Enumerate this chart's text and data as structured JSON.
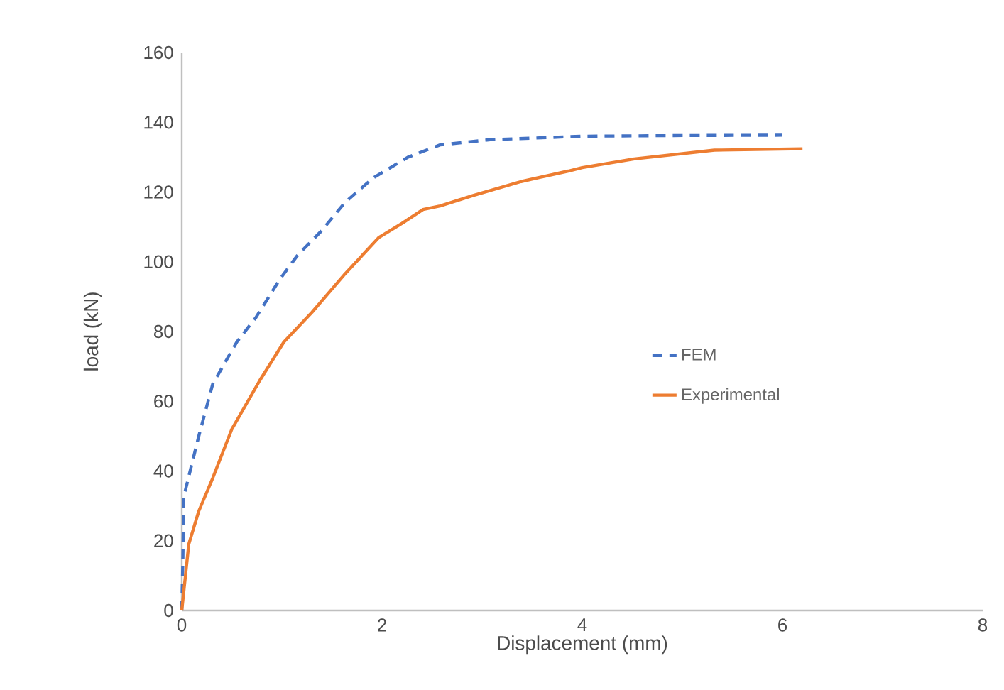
{
  "chart_data": {
    "type": "line",
    "xlabel": "Displacement (mm)",
    "ylabel": "load (kN)",
    "xlim": [
      0,
      8
    ],
    "ylim": [
      0,
      160
    ],
    "xticks": [
      0,
      2,
      4,
      6,
      8
    ],
    "yticks": [
      0,
      20,
      40,
      60,
      80,
      100,
      120,
      140,
      160
    ],
    "grid": false,
    "legend": "right",
    "marker": "none",
    "series": [
      {
        "name": "FEM",
        "color": "#4472c4",
        "line_style": "dashed",
        "x": [
          0,
          0.01,
          0.02,
          0.17,
          0.31,
          0.55,
          0.74,
          0.98,
          1.16,
          1.4,
          1.63,
          1.91,
          2.26,
          2.58,
          3.08,
          4.0,
          5.0,
          6.0
        ],
        "values": [
          0,
          13,
          32.6,
          50,
          65,
          77,
          84,
          95,
          102,
          109,
          117,
          124,
          130,
          133.5,
          135,
          136,
          136.2,
          136.3
        ]
      },
      {
        "name": "Experimental",
        "color": "#ed7d31",
        "line_style": "solid",
        "x": [
          0,
          0.07,
          0.17,
          0.31,
          0.5,
          0.78,
          1.02,
          1.3,
          1.63,
          1.97,
          2.2,
          2.41,
          2.58,
          2.91,
          3.39,
          3.86,
          4.0,
          4.52,
          5.32,
          6.2
        ],
        "values": [
          0,
          19,
          28.5,
          38,
          52,
          66,
          77,
          85.5,
          96.5,
          107,
          111,
          115,
          116,
          119,
          123,
          126,
          127,
          129.5,
          132,
          132.4
        ]
      }
    ]
  }
}
